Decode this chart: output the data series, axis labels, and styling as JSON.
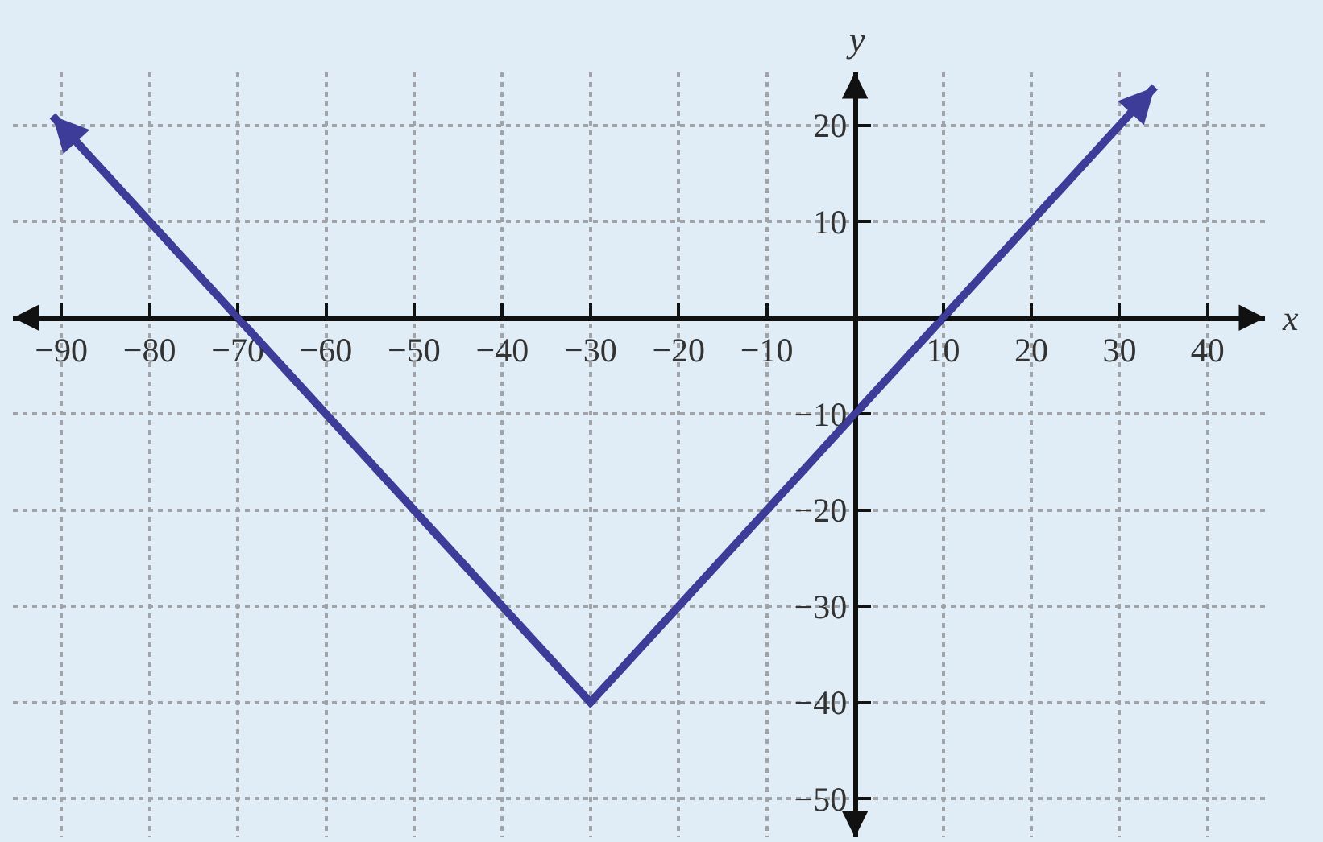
{
  "chart_data": {
    "type": "line",
    "xlabel": "x",
    "ylabel": "y",
    "x": [
      -91,
      -30,
      34
    ],
    "series": [
      {
        "color": "#3d3d99",
        "values": [
          21,
          -40,
          24
        ]
      }
    ],
    "xlim": [
      -95.5,
      46.5
    ],
    "ylim": [
      -54,
      25.5
    ],
    "xticks": [
      -90,
      -80,
      -70,
      -60,
      -50,
      -40,
      -30,
      -20,
      -10,
      10,
      20,
      30,
      40
    ],
    "yticks": [
      -50,
      -40,
      -30,
      -20,
      -10,
      10,
      20
    ],
    "grid": true
  }
}
